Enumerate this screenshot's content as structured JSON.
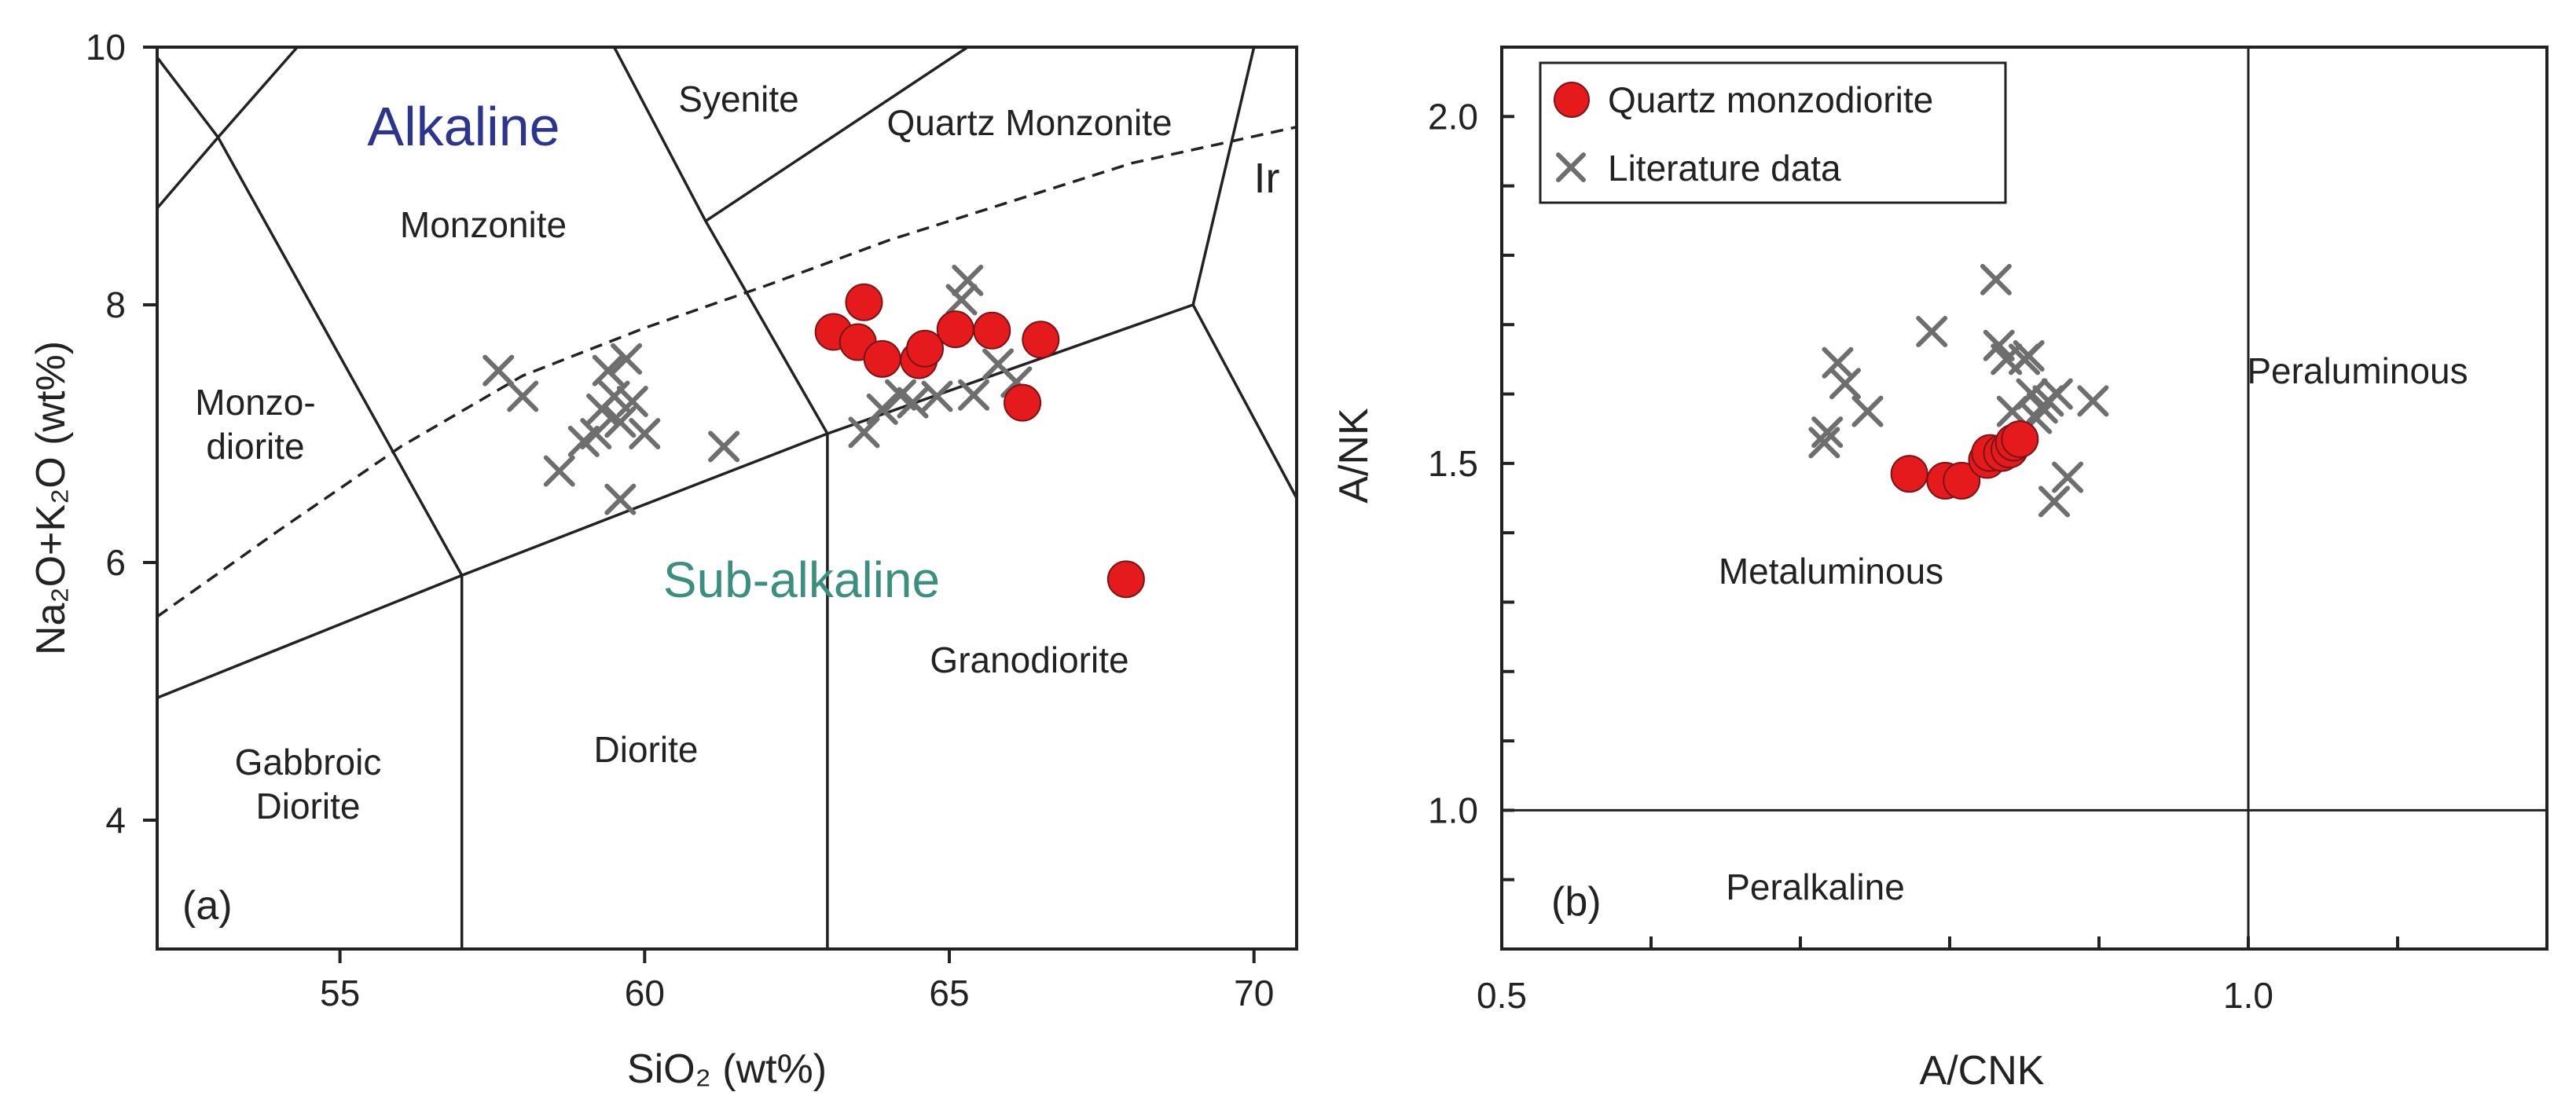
{
  "chart_data": [
    {
      "type": "scatter",
      "panel_label": "(a)",
      "xlabel": "SiO₂ (wt%)",
      "ylabel": "Na₂O+K₂O (wt%)",
      "xlim": [
        52,
        70.7
      ],
      "ylim": [
        3,
        10
      ],
      "xticks": [
        55,
        60,
        65,
        70
      ],
      "xtick_labels": [
        "55",
        "60",
        "65",
        "70"
      ],
      "yticks": [
        4,
        6,
        8,
        10
      ],
      "ytick_labels": [
        "4",
        "6",
        "8",
        "10"
      ],
      "series_labels": {
        "alkaline": "Alkaline",
        "subalkaline": "Sub-alkaline"
      },
      "field_labels": {
        "syenite": "Syenite",
        "quartz_monzonite": "Quartz Monzonite",
        "ir": "Ir",
        "monzonite": "Monzonite",
        "monzodiorite_1": "Monzo-",
        "monzodiorite_2": "diorite",
        "gabbroic_1": "Gabbroic",
        "gabbroic_2": "Diorite",
        "diorite": "Diorite",
        "granodiorite": "Granodiorite"
      },
      "colors": {
        "alkaline": "#2b3590",
        "subalkaline": "#3b8f7f",
        "sample": "#e41a1c",
        "literature": "#6e6e6e"
      },
      "series": [
        {
          "name": "Quartz monzodiorite",
          "points": [
            [
              63.1,
              7.79
            ],
            [
              63.6,
              8.02
            ],
            [
              63.5,
              7.71
            ],
            [
              63.9,
              7.58
            ],
            [
              64.5,
              7.57
            ],
            [
              64.6,
              7.66
            ],
            [
              65.1,
              7.81
            ],
            [
              65.7,
              7.8
            ],
            [
              66.5,
              7.73
            ],
            [
              66.2,
              7.24
            ],
            [
              67.9,
              5.87
            ]
          ]
        },
        {
          "name": "Literature data",
          "points": [
            [
              57.6,
              7.49
            ],
            [
              58.0,
              7.29
            ],
            [
              58.6,
              6.71
            ],
            [
              59.0,
              6.94
            ],
            [
              59.2,
              7.0
            ],
            [
              59.3,
              7.19
            ],
            [
              59.4,
              7.49
            ],
            [
              59.5,
              7.29
            ],
            [
              59.6,
              7.09
            ],
            [
              59.6,
              6.49
            ],
            [
              59.7,
              7.58
            ],
            [
              59.8,
              7.25
            ],
            [
              60.0,
              7.0
            ],
            [
              61.3,
              6.9
            ],
            [
              63.6,
              7.01
            ],
            [
              63.9,
              7.19
            ],
            [
              64.2,
              7.3
            ],
            [
              64.4,
              7.24
            ],
            [
              64.8,
              7.29
            ],
            [
              65.2,
              8.04
            ],
            [
              65.3,
              8.19
            ],
            [
              65.4,
              7.3
            ],
            [
              65.8,
              7.54
            ],
            [
              66.1,
              7.4
            ]
          ]
        }
      ]
    },
    {
      "type": "scatter",
      "panel_label": "(b)",
      "xlabel": "A/CNK",
      "ylabel": "A/NK",
      "xlim": [
        0.5,
        1.2
      ],
      "ylim": [
        0.8,
        2.1
      ],
      "xticks": [
        0.5,
        1.0
      ],
      "xtick_labels": [
        "0.5",
        "1.0"
      ],
      "yticks": [
        1.0,
        1.5,
        2.0
      ],
      "ytick_labels": [
        "1.0",
        "1.5",
        "2.0"
      ],
      "field_labels": {
        "metaluminous": "Metaluminous",
        "peraluminous": "Peraluminous",
        "peralkaline": "Peralkaline"
      },
      "legend": [
        "Quartz monzodiorite",
        "Literature data"
      ],
      "series": [
        {
          "name": "Quartz monzodiorite",
          "points": [
            [
              0.773,
              1.485
            ],
            [
              0.797,
              1.475
            ],
            [
              0.808,
              1.475
            ],
            [
              0.825,
              1.505
            ],
            [
              0.827,
              1.515
            ],
            [
              0.835,
              1.515
            ],
            [
              0.84,
              1.52
            ],
            [
              0.843,
              1.53
            ],
            [
              0.847,
              1.535
            ]
          ]
        },
        {
          "name": "Literature data",
          "points": [
            [
              0.716,
              1.53
            ],
            [
              0.718,
              1.545
            ],
            [
              0.725,
              1.645
            ],
            [
              0.73,
              1.615
            ],
            [
              0.745,
              1.575
            ],
            [
              0.788,
              1.69
            ],
            [
              0.831,
              1.765
            ],
            [
              0.833,
              1.67
            ],
            [
              0.838,
              1.65
            ],
            [
              0.842,
              1.575
            ],
            [
              0.85,
              1.65
            ],
            [
              0.853,
              1.655
            ],
            [
              0.855,
              1.6
            ],
            [
              0.858,
              1.565
            ],
            [
              0.862,
              1.58
            ],
            [
              0.866,
              1.59
            ],
            [
              0.87,
              1.445
            ],
            [
              0.872,
              1.6
            ],
            [
              0.879,
              1.48
            ],
            [
              0.896,
              1.59
            ]
          ]
        }
      ]
    }
  ]
}
